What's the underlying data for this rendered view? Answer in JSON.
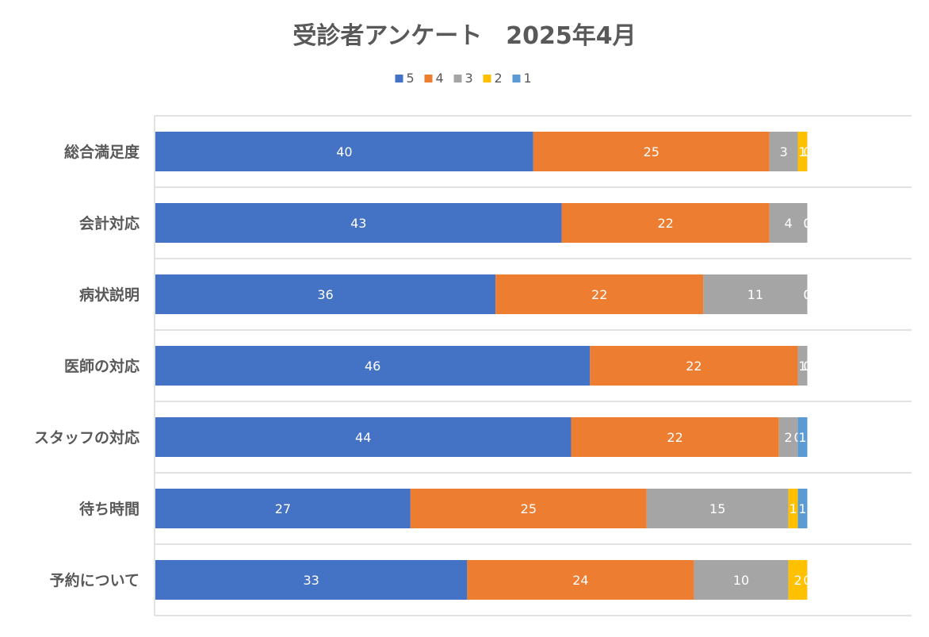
{
  "chart_data": {
    "type": "bar",
    "orientation": "horizontal",
    "stacked": true,
    "title": "受診者アンケート　2025年4月",
    "legend_position": "top",
    "grid": "horizontal-separators",
    "categories": [
      "総合満足度",
      "会計対応",
      "病状説明",
      "医師の対応",
      "スタッフの対応",
      "待ち時間",
      "予約について"
    ],
    "series": [
      {
        "name": "5",
        "color": "#4472C4",
        "values": [
          40,
          43,
          36,
          46,
          44,
          27,
          33
        ]
      },
      {
        "name": "4",
        "color": "#ED7D31",
        "values": [
          25,
          22,
          22,
          22,
          22,
          25,
          24
        ]
      },
      {
        "name": "3",
        "color": "#A5A5A5",
        "values": [
          3,
          4,
          11,
          1,
          2,
          15,
          10
        ]
      },
      {
        "name": "2",
        "color": "#FFC000",
        "values": [
          1,
          0,
          0,
          0,
          0,
          1,
          2
        ]
      },
      {
        "name": "1",
        "color": "#5B9BD5",
        "values": [
          0,
          0,
          0,
          0,
          1,
          1,
          0
        ]
      }
    ],
    "xlim": [
      0,
      80
    ]
  }
}
